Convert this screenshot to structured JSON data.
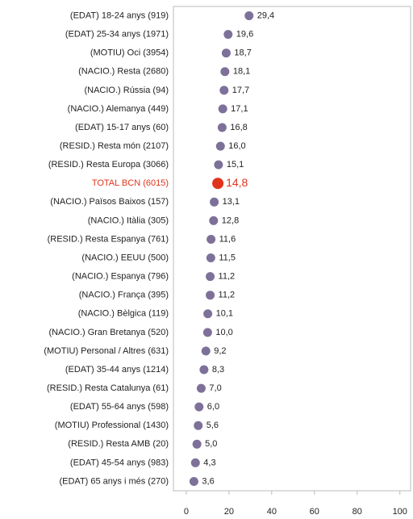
{
  "chart_data": {
    "type": "dot",
    "categories": [
      "(EDAT) 18-24 anys (919)",
      "(EDAT) 25-34 anys (1971)",
      "(MOTIU) Oci (3954)",
      "(NACIO.) Resta (2680)",
      "(NACIO.) Rússia (94)",
      "(NACIO.) Alemanya (449)",
      "(EDAT) 15-17 anys (60)",
      "(RESID.) Resta món (2107)",
      "(RESID.) Resta Europa (3066)",
      "TOTAL BCN (6015)",
      "(NACIO.) Països Baixos (157)",
      "(NACIO.) Itàlia (305)",
      "(RESID.) Resta Espanya (761)",
      "(NACIO.) EEUU (500)",
      "(NACIO.) Espanya (796)",
      "(NACIO.) França (395)",
      "(NACIO.) Bèlgica (119)",
      "(NACIO.) Gran Bretanya (520)",
      "(MOTIU) Personal / Altres (631)",
      "(EDAT) 35-44 anys (1214)",
      "(RESID.) Resta Catalunya (61)",
      "(EDAT) 55-64 anys (598)",
      "(MOTIU) Professional (1430)",
      "(RESID.) Resta AMB (20)",
      "(EDAT) 45-54 anys (983)",
      "(EDAT) 65 anys i més (270)"
    ],
    "values": [
      29.4,
      19.6,
      18.7,
      18.1,
      17.7,
      17.1,
      16.8,
      16.0,
      15.1,
      14.8,
      13.1,
      12.8,
      11.6,
      11.5,
      11.2,
      11.2,
      10.1,
      10.0,
      9.2,
      8.3,
      7.0,
      6.0,
      5.6,
      5.0,
      4.3,
      3.6
    ],
    "value_labels": [
      "29,4",
      "19,6",
      "18,7",
      "18,1",
      "17,7",
      "17,1",
      "16,8",
      "16,0",
      "15,1",
      "14,8",
      "13,1",
      "12,8",
      "11,6",
      "11,5",
      "11,2",
      "11,2",
      "10,1",
      "10,0",
      "9,2",
      "8,3",
      "7,0",
      "6,0",
      "5,6",
      "5,0",
      "4,3",
      "3,6"
    ],
    "color": "#7d7199",
    "highlight": {
      "index": 9,
      "color": "#e0341c"
    },
    "xlim": [
      -6,
      105
    ],
    "xticks": [
      0,
      20,
      40,
      60,
      80,
      100
    ]
  }
}
